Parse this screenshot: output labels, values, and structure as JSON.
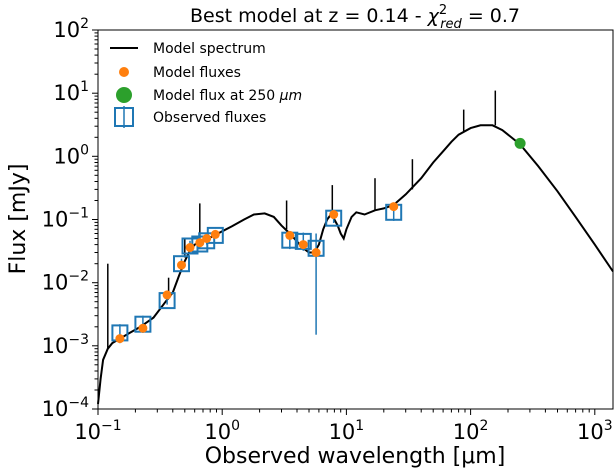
{
  "chart_data": {
    "type": "scatter",
    "title": "Best model at z = 0.14 - χ²red = 0.7",
    "title_parts": {
      "prefix": "Best model at z = 0.14 - ",
      "chi": "χ",
      "sup": "2",
      "sub": "red",
      "suffix": " = 0.7"
    },
    "xlabel": "Observed wavelength [μm]",
    "ylabel": "Flux [mJy]",
    "xscale": "log",
    "yscale": "log",
    "xlim": [
      0.1,
      1400
    ],
    "ylim": [
      0.0001,
      100
    ],
    "x_ticks": [
      {
        "base": "10",
        "exp": "−1",
        "value": 0.1
      },
      {
        "base": "10",
        "exp": "0",
        "value": 1
      },
      {
        "base": "10",
        "exp": "1",
        "value": 10
      },
      {
        "base": "10",
        "exp": "2",
        "value": 100
      },
      {
        "base": "10",
        "exp": "3",
        "value": 1000
      }
    ],
    "y_ticks": [
      {
        "base": "10",
        "exp": "−4",
        "value": 0.0001
      },
      {
        "base": "10",
        "exp": "−3",
        "value": 0.001
      },
      {
        "base": "10",
        "exp": "−2",
        "value": 0.01
      },
      {
        "base": "10",
        "exp": "−1",
        "value": 0.1
      },
      {
        "base": "10",
        "exp": "0",
        "value": 1
      },
      {
        "base": "10",
        "exp": "1",
        "value": 10
      },
      {
        "base": "10",
        "exp": "2",
        "value": 100
      }
    ],
    "grid": false,
    "legend_position": "upper-left",
    "colors": {
      "model_spectrum": "#000000",
      "model_fluxes": "#ff7f0e",
      "model_flux_250": "#2ca02c",
      "observed": "#1f77b4"
    },
    "legend": [
      {
        "label": "Model spectrum",
        "marker": "line"
      },
      {
        "label": "Model fluxes",
        "marker": "orange-dot"
      },
      {
        "label_prefix": "Model flux at 250 ",
        "label_unit": "μm",
        "marker": "green-dot"
      },
      {
        "label": "Observed fluxes",
        "marker": "blue-square-errorbar"
      }
    ],
    "model_spectrum": [
      [
        0.1,
        0.00012
      ],
      [
        0.105,
        0.0003
      ],
      [
        0.11,
        0.0006
      ],
      [
        0.12,
        0.0009
      ],
      [
        0.13,
        0.0011
      ],
      [
        0.15,
        0.0013
      ],
      [
        0.18,
        0.0016
      ],
      [
        0.22,
        0.002
      ],
      [
        0.28,
        0.0028
      ],
      [
        0.35,
        0.005
      ],
      [
        0.4,
        0.007
      ],
      [
        0.45,
        0.013
      ],
      [
        0.5,
        0.022
      ],
      [
        0.55,
        0.032
      ],
      [
        0.6,
        0.04
      ],
      [
        0.7,
        0.047
      ],
      [
        0.8,
        0.052
      ],
      [
        0.9,
        0.058
      ],
      [
        1.0,
        0.065
      ],
      [
        1.2,
        0.078
      ],
      [
        1.5,
        0.1
      ],
      [
        1.8,
        0.12
      ],
      [
        2.2,
        0.125
      ],
      [
        2.6,
        0.11
      ],
      [
        3.0,
        0.08
      ],
      [
        3.5,
        0.06
      ],
      [
        4.0,
        0.045
      ],
      [
        4.5,
        0.035
      ],
      [
        5.0,
        0.03
      ],
      [
        5.5,
        0.03
      ],
      [
        6.0,
        0.04
      ],
      [
        6.5,
        0.07
      ],
      [
        7.0,
        0.1
      ],
      [
        7.5,
        0.12
      ],
      [
        8.0,
        0.1
      ],
      [
        8.5,
        0.08
      ],
      [
        9.0,
        0.06
      ],
      [
        9.5,
        0.05
      ],
      [
        10.0,
        0.07
      ],
      [
        11.0,
        0.11
      ],
      [
        12.0,
        0.13
      ],
      [
        14.0,
        0.12
      ],
      [
        17.0,
        0.14
      ],
      [
        20.0,
        0.15
      ],
      [
        24.0,
        0.17
      ],
      [
        30.0,
        0.25
      ],
      [
        40.0,
        0.45
      ],
      [
        50.0,
        0.8
      ],
      [
        60.0,
        1.2
      ],
      [
        70.0,
        1.7
      ],
      [
        80.0,
        2.2
      ],
      [
        100.0,
        2.8
      ],
      [
        120.0,
        3.1
      ],
      [
        150.0,
        3.1
      ],
      [
        180.0,
        2.6
      ],
      [
        250.0,
        1.55
      ],
      [
        350.0,
        0.7
      ],
      [
        500.0,
        0.28
      ],
      [
        700.0,
        0.11
      ],
      [
        1000.0,
        0.04
      ],
      [
        1400.0,
        0.015
      ]
    ],
    "emission_lines": [
      [
        0.12,
        0.0009,
        0.02
      ],
      [
        0.37,
        0.0055,
        0.012
      ],
      [
        0.5,
        0.025,
        0.05
      ],
      [
        0.66,
        0.043,
        0.18
      ],
      [
        3.3,
        0.07,
        0.2
      ],
      [
        7.7,
        0.11,
        0.35
      ],
      [
        17.0,
        0.14,
        0.45
      ],
      [
        34.0,
        0.3,
        0.9
      ],
      [
        88.0,
        2.5,
        5.5
      ],
      [
        158.0,
        3.1,
        11.0
      ]
    ],
    "model_fluxes": {
      "x": [
        0.15,
        0.23,
        0.36,
        0.47,
        0.55,
        0.66,
        0.75,
        0.88,
        3.5,
        4.5,
        5.7,
        7.9,
        24.0
      ],
      "y": [
        0.0013,
        0.0019,
        0.0064,
        0.019,
        0.036,
        0.043,
        0.05,
        0.058,
        0.056,
        0.04,
        0.03,
        0.12,
        0.16
      ]
    },
    "model_flux_250": {
      "x": 250,
      "y": 1.6
    },
    "observed_fluxes": {
      "x": [
        0.15,
        0.23,
        0.36,
        0.47,
        0.55,
        0.66,
        0.75,
        0.88,
        3.5,
        4.5,
        5.7,
        7.9,
        24.0
      ],
      "y": [
        0.0016,
        0.0022,
        0.0052,
        0.02,
        0.038,
        0.041,
        0.046,
        0.056,
        0.047,
        0.045,
        0.035,
        0.105,
        0.13
      ],
      "yerr_low": [
        0.0011,
        0.0016,
        0.0045,
        0.017,
        0.03,
        0.034,
        0.04,
        0.05,
        0.034,
        0.032,
        0.0015,
        0.088,
        0.095
      ],
      "yerr_high": [
        0.0022,
        0.003,
        0.0062,
        0.024,
        0.046,
        0.049,
        0.053,
        0.064,
        0.062,
        0.062,
        0.06,
        0.126,
        0.17
      ]
    }
  }
}
